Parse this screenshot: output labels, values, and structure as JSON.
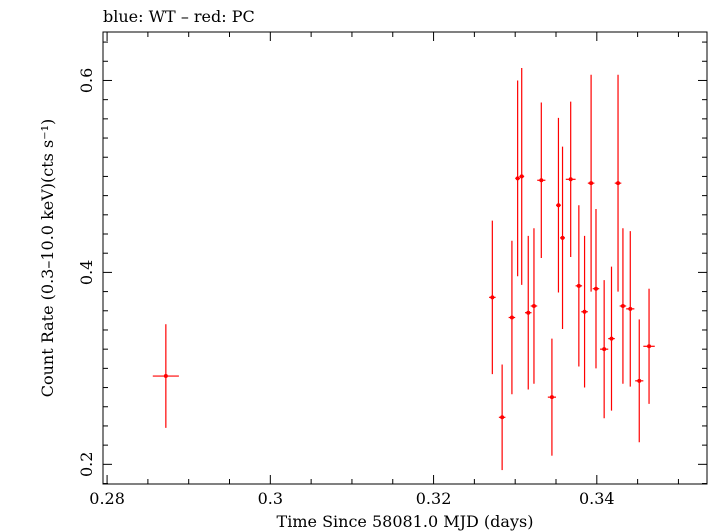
{
  "chart_data": {
    "type": "scatter",
    "title": "blue: WT – red: PC",
    "xlabel": "Time Since 58081.0 MJD (days)",
    "ylabel": "Count Rate (0.3–10.0 keV)(cts s⁻¹)",
    "xlim": [
      0.2795,
      0.3535
    ],
    "ylim": [
      0.1795,
      0.6505
    ],
    "x_ticks": [
      {
        "value": 0.28,
        "label": "0.28"
      },
      {
        "value": 0.3,
        "label": "0.3"
      },
      {
        "value": 0.32,
        "label": "0.32"
      },
      {
        "value": 0.34,
        "label": "0.34"
      }
    ],
    "y_ticks": [
      {
        "value": 0.2,
        "label": "0.2"
      },
      {
        "value": 0.4,
        "label": "0.4"
      },
      {
        "value": 0.6,
        "label": "0.6"
      }
    ],
    "grid": false,
    "series": [
      {
        "name": "PC",
        "color": "#ff0000",
        "points": [
          {
            "x": 0.2872,
            "xerr": 0.0016,
            "y": 0.292,
            "yerr": 0.054
          },
          {
            "x": 0.3272,
            "xerr": 0.0004,
            "y": 0.374,
            "yerr": 0.08
          },
          {
            "x": 0.3284,
            "xerr": 0.0004,
            "y": 0.249,
            "yerr": 0.055
          },
          {
            "x": 0.3296,
            "xerr": 0.0004,
            "y": 0.353,
            "yerr": 0.08
          },
          {
            "x": 0.3303,
            "xerr": 0.0003,
            "y": 0.498,
            "yerr": 0.102
          },
          {
            "x": 0.3308,
            "xerr": 0.0003,
            "y": 0.5,
            "yerr": 0.113
          },
          {
            "x": 0.3316,
            "xerr": 0.0004,
            "y": 0.358,
            "yerr": 0.08
          },
          {
            "x": 0.3323,
            "xerr": 0.0004,
            "y": 0.365,
            "yerr": 0.081
          },
          {
            "x": 0.3332,
            "xerr": 0.0005,
            "y": 0.496,
            "yerr": 0.081
          },
          {
            "x": 0.3345,
            "xerr": 0.0005,
            "y": 0.27,
            "yerr": 0.061
          },
          {
            "x": 0.3353,
            "xerr": 0.0003,
            "y": 0.47,
            "yerr": 0.091
          },
          {
            "x": 0.3358,
            "xerr": 0.0003,
            "y": 0.436,
            "yerr": 0.095
          },
          {
            "x": 0.3368,
            "xerr": 0.0006,
            "y": 0.497,
            "yerr": 0.081
          },
          {
            "x": 0.3378,
            "xerr": 0.0004,
            "y": 0.386,
            "yerr": 0.084
          },
          {
            "x": 0.3385,
            "xerr": 0.0004,
            "y": 0.359,
            "yerr": 0.079
          },
          {
            "x": 0.3393,
            "xerr": 0.0004,
            "y": 0.493,
            "yerr": 0.113
          },
          {
            "x": 0.3399,
            "xerr": 0.0004,
            "y": 0.383,
            "yerr": 0.083
          },
          {
            "x": 0.3409,
            "xerr": 0.0005,
            "y": 0.32,
            "yerr": 0.072
          },
          {
            "x": 0.3418,
            "xerr": 0.0004,
            "y": 0.331,
            "yerr": 0.075
          },
          {
            "x": 0.3426,
            "xerr": 0.0004,
            "y": 0.493,
            "yerr": 0.113
          },
          {
            "x": 0.3432,
            "xerr": 0.0004,
            "y": 0.365,
            "yerr": 0.081
          },
          {
            "x": 0.3441,
            "xerr": 0.0005,
            "y": 0.362,
            "yerr": 0.081
          },
          {
            "x": 0.3452,
            "xerr": 0.0005,
            "y": 0.287,
            "yerr": 0.064
          },
          {
            "x": 0.3464,
            "xerr": 0.0007,
            "y": 0.323,
            "yerr": 0.06
          }
        ]
      }
    ]
  }
}
